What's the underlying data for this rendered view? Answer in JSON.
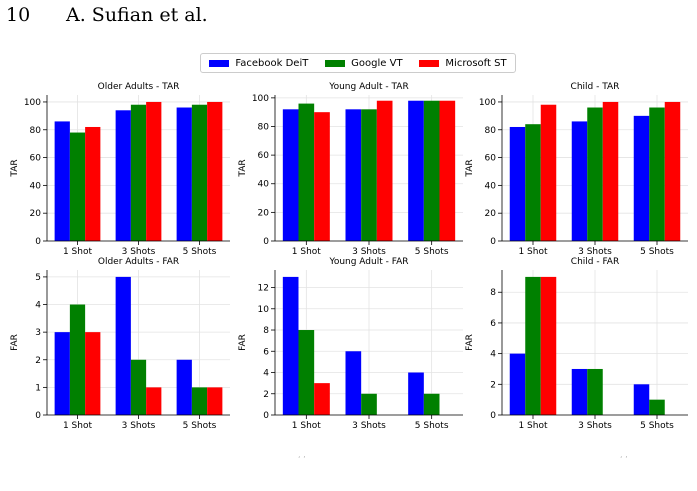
{
  "page_header": {
    "page_number": "10",
    "authors": "A. Sufian et al."
  },
  "colors": {
    "Facebook DeiT": "#0000ff",
    "Google VT": "#008000",
    "Microsoft ST": "#ff0000"
  },
  "legend": [
    {
      "name": "Facebook DeiT",
      "color": "#0000ff"
    },
    {
      "name": "Google VT",
      "color": "#008000"
    },
    {
      "name": "Microsoft ST",
      "color": "#ff0000"
    }
  ],
  "chart_data": [
    {
      "type": "bar",
      "title": "Older Adults - TAR",
      "xlabel": "",
      "ylabel": "TAR",
      "categories": [
        "1 Shot",
        "3 Shots",
        "5 Shots"
      ],
      "ylim": [
        0,
        105
      ],
      "yticks": [
        0,
        20,
        40,
        60,
        80,
        100
      ],
      "grid": true,
      "series": [
        {
          "name": "Facebook DeiT",
          "values": [
            86,
            94,
            96
          ]
        },
        {
          "name": "Google VT",
          "values": [
            78,
            98,
            98
          ]
        },
        {
          "name": "Microsoft ST",
          "values": [
            82,
            100,
            100
          ]
        }
      ]
    },
    {
      "type": "bar",
      "title": "Young Adult - TAR",
      "xlabel": "",
      "ylabel": "TAR",
      "categories": [
        "1 Shot",
        "3 Shots",
        "5 Shots"
      ],
      "ylim": [
        0,
        102
      ],
      "yticks": [
        0,
        20,
        40,
        60,
        80,
        100
      ],
      "grid": true,
      "series": [
        {
          "name": "Facebook DeiT",
          "values": [
            92,
            92,
            98
          ]
        },
        {
          "name": "Google VT",
          "values": [
            96,
            92,
            98
          ]
        },
        {
          "name": "Microsoft ST",
          "values": [
            90,
            98,
            98
          ]
        }
      ]
    },
    {
      "type": "bar",
      "title": "Child - TAR",
      "xlabel": "",
      "ylabel": "TAR",
      "categories": [
        "1 Shot",
        "3 Shots",
        "5 Shots"
      ],
      "ylim": [
        0,
        105
      ],
      "yticks": [
        0,
        20,
        40,
        60,
        80,
        100
      ],
      "grid": true,
      "series": [
        {
          "name": "Facebook DeiT",
          "values": [
            82,
            86,
            90
          ]
        },
        {
          "name": "Google VT",
          "values": [
            84,
            96,
            96
          ]
        },
        {
          "name": "Microsoft ST",
          "values": [
            98,
            100,
            100
          ]
        }
      ]
    },
    {
      "type": "bar",
      "title": "Older Adults - FAR",
      "xlabel": "",
      "ylabel": "FAR",
      "categories": [
        "1 Shot",
        "3 Shots",
        "5 Shots"
      ],
      "ylim": [
        0,
        5.25
      ],
      "yticks": [
        0,
        1,
        2,
        3,
        4,
        5
      ],
      "grid": true,
      "series": [
        {
          "name": "Facebook DeiT",
          "values": [
            3,
            5,
            2
          ]
        },
        {
          "name": "Google VT",
          "values": [
            4,
            2,
            1
          ]
        },
        {
          "name": "Microsoft ST",
          "values": [
            3,
            1,
            1
          ]
        }
      ]
    },
    {
      "type": "bar",
      "title": "Young Adult - FAR",
      "xlabel": "",
      "ylabel": "FAR",
      "categories": [
        "1 Shot",
        "3 Shots",
        "5 Shots"
      ],
      "ylim": [
        0,
        13.65
      ],
      "yticks": [
        0,
        2,
        4,
        6,
        8,
        10,
        12
      ],
      "grid": true,
      "series": [
        {
          "name": "Facebook DeiT",
          "values": [
            13,
            6,
            4
          ]
        },
        {
          "name": "Google VT",
          "values": [
            8,
            2,
            2
          ]
        },
        {
          "name": "Microsoft ST",
          "values": [
            3,
            0,
            0
          ]
        }
      ]
    },
    {
      "type": "bar",
      "title": "Child - FAR",
      "xlabel": "",
      "ylabel": "FAR",
      "categories": [
        "1 Shot",
        "3 Shots",
        "5 Shots"
      ],
      "ylim": [
        0,
        9.45
      ],
      "yticks": [
        0,
        2,
        4,
        6,
        8
      ],
      "grid": true,
      "series": [
        {
          "name": "Facebook DeiT",
          "values": [
            4,
            3,
            2
          ]
        },
        {
          "name": "Google VT",
          "values": [
            9,
            3,
            1
          ]
        },
        {
          "name": "Microsoft ST",
          "values": [
            9,
            0,
            0
          ]
        }
      ]
    }
  ]
}
